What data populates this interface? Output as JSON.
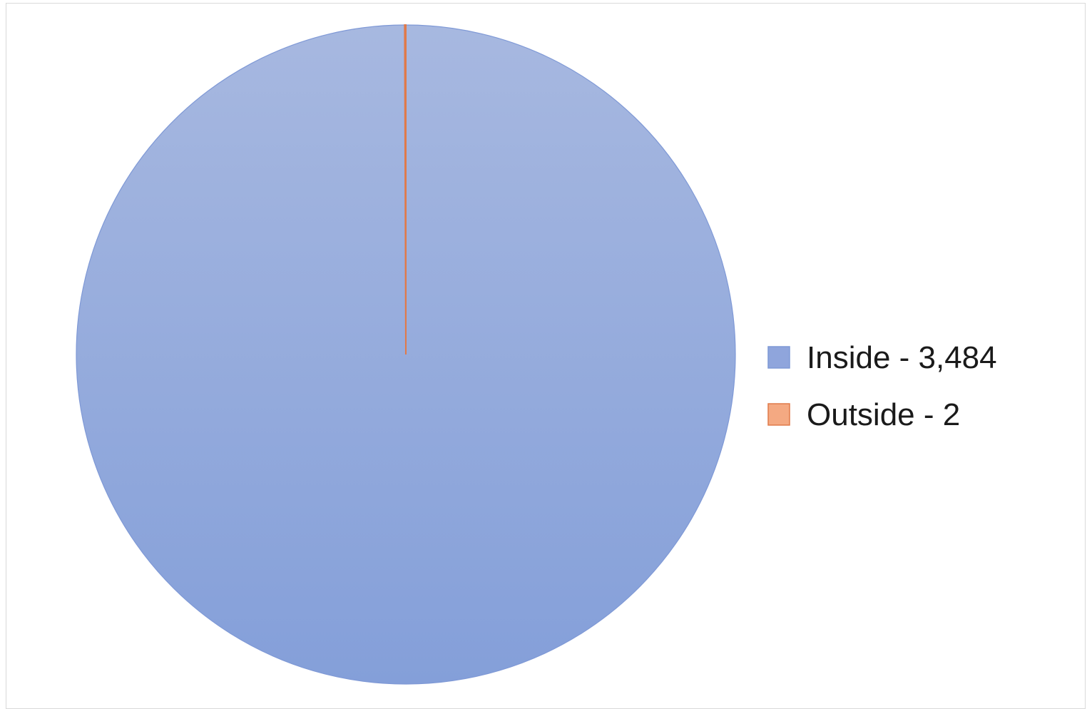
{
  "chart_data": {
    "type": "pie",
    "title": "",
    "slices": [
      {
        "label": "Inside - 3,484",
        "value": 3484,
        "color": "#8fa5dc"
      },
      {
        "label": "Outside - 2",
        "value": 2,
        "color": "#f4a982"
      }
    ],
    "slice_borders": {
      "Inside - 3,484": "#7f99d6",
      "Outside - 2": "#e07a4a"
    },
    "legend_position": "right"
  }
}
